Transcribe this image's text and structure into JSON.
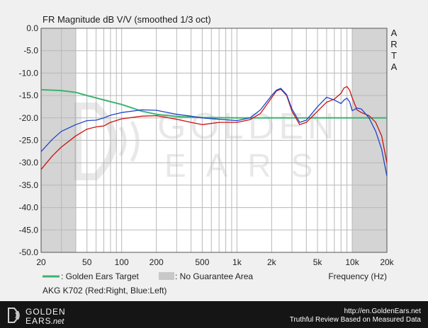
{
  "chart_data": {
    "type": "line",
    "title": "FR Magnitude dB V/V (smoothed 1/3 oct)",
    "side_label": [
      "A",
      "R",
      "T",
      "A"
    ],
    "xlabel": "Frequency (Hz)",
    "xscale": "log",
    "xlim": [
      20,
      20000
    ],
    "ylim": [
      -50,
      0
    ],
    "x_ticks": [
      {
        "value": 20,
        "label": "20"
      },
      {
        "value": 50,
        "label": "50"
      },
      {
        "value": 100,
        "label": "100"
      },
      {
        "value": 200,
        "label": "200"
      },
      {
        "value": 500,
        "label": "500"
      },
      {
        "value": 1000,
        "label": "1k"
      },
      {
        "value": 2000,
        "label": "2k"
      },
      {
        "value": 5000,
        "label": "5k"
      },
      {
        "value": 10000,
        "label": "10k"
      },
      {
        "value": 20000,
        "label": "20k"
      }
    ],
    "y_ticks": [
      "0.0",
      "-5.0",
      "-10.0",
      "-15.0",
      "-20.0",
      "-25.0",
      "-30.0",
      "-35.0",
      "-40.0",
      "-45.0",
      "-50.0"
    ],
    "grid": true,
    "shaded_ranges": [
      [
        20,
        40
      ],
      [
        10000,
        20000
      ]
    ],
    "series": [
      {
        "name": "Golden Ears Target",
        "color": "#3cb371",
        "x": [
          20,
          30,
          40,
          50,
          70,
          100,
          150,
          200,
          300,
          500,
          1000,
          2000,
          5000,
          10000,
          20000
        ],
        "y": [
          -13.7,
          -13.9,
          -14.3,
          -15.0,
          -16.0,
          -17.0,
          -18.5,
          -19.2,
          -19.7,
          -19.9,
          -20.0,
          -20.0,
          -20.0,
          -20.0,
          -20.0
        ]
      },
      {
        "name": "Right",
        "color": "#cc1111",
        "x": [
          20,
          25,
          30,
          40,
          50,
          60,
          70,
          80,
          100,
          150,
          200,
          300,
          400,
          500,
          700,
          1000,
          1300,
          1600,
          2000,
          2200,
          2400,
          2700,
          3000,
          3500,
          4000,
          5000,
          6000,
          7000,
          8000,
          8500,
          9000,
          9500,
          10000,
          11000,
          12000,
          14000,
          16000,
          18000,
          20000
        ],
        "y": [
          -31.5,
          -28.5,
          -26.5,
          -24.0,
          -22.5,
          -22.0,
          -21.8,
          -21.0,
          -20.2,
          -19.6,
          -19.5,
          -20.3,
          -21.0,
          -21.5,
          -21.0,
          -21.0,
          -20.4,
          -19.0,
          -15.5,
          -14.0,
          -13.6,
          -15.0,
          -18.5,
          -21.5,
          -21.0,
          -18.5,
          -16.5,
          -15.8,
          -14.5,
          -13.3,
          -13.0,
          -13.8,
          -15.5,
          -18.2,
          -18.8,
          -19.5,
          -21.0,
          -24.0,
          -30.0
        ]
      },
      {
        "name": "Left",
        "color": "#1f45c8",
        "x": [
          20,
          25,
          30,
          40,
          50,
          60,
          70,
          80,
          100,
          150,
          200,
          300,
          400,
          500,
          700,
          1000,
          1300,
          1600,
          2000,
          2200,
          2400,
          2700,
          3000,
          3500,
          4000,
          5000,
          6000,
          7000,
          8000,
          8500,
          9000,
          9500,
          10000,
          11000,
          12000,
          14000,
          16000,
          18000,
          20000
        ],
        "y": [
          -27.5,
          -24.8,
          -23.0,
          -21.5,
          -20.6,
          -20.5,
          -20.0,
          -19.4,
          -18.8,
          -18.2,
          -18.3,
          -19.2,
          -19.6,
          -20.0,
          -20.3,
          -20.6,
          -20.0,
          -18.2,
          -15.0,
          -13.8,
          -13.4,
          -14.8,
          -18.0,
          -21.0,
          -20.5,
          -17.5,
          -15.4,
          -16.0,
          -16.8,
          -16.0,
          -15.6,
          -16.4,
          -18.4,
          -17.8,
          -18.0,
          -20.0,
          -23.0,
          -27.0,
          -33.0
        ]
      }
    ],
    "legend": {
      "placement": "bottom",
      "target_label": ": Golden Ears Target",
      "area_label": ": No Guarantee Area"
    },
    "caption": "AKG K702 (Red:Right, Blue:Left)",
    "watermark": {
      "line1": "GOLDEN",
      "line2": "EARS"
    }
  },
  "footer": {
    "brand_line1": "GOLDEN",
    "brand_line2": "EARS",
    "brand_suffix": ".net",
    "url": "http://en.GoldenEars.net",
    "tagline": "Truthful Review Based on Measured Data"
  }
}
